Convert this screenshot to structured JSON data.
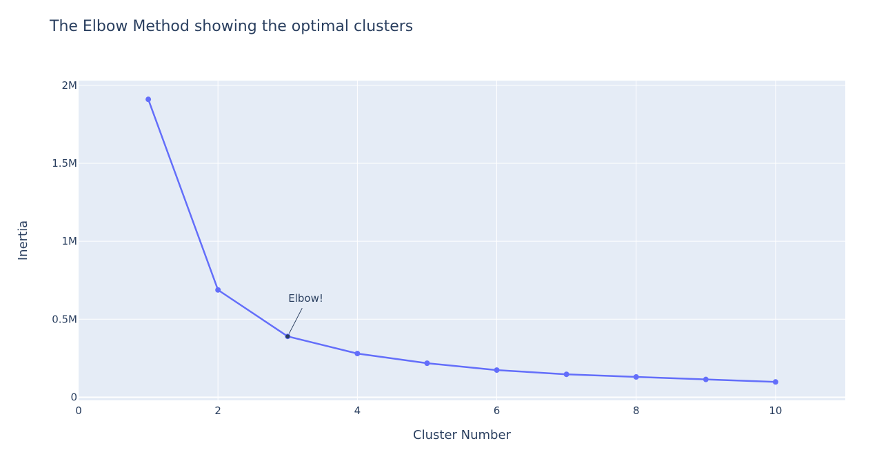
{
  "chart_data": {
    "type": "line",
    "title": "The Elbow Method showing the optimal clusters",
    "xlabel": "Cluster Number",
    "ylabel": "Inertia",
    "xlim": [
      0,
      11
    ],
    "ylim": [
      -20000,
      2030000
    ],
    "x_ticks": [
      0,
      2,
      4,
      6,
      8,
      10
    ],
    "x_tick_labels": [
      "0",
      "2",
      "4",
      "6",
      "8",
      "10"
    ],
    "y_ticks": [
      0,
      500000,
      1000000,
      1500000,
      2000000
    ],
    "y_tick_labels": [
      "0",
      "0.5M",
      "1M",
      "1.5M",
      "2M"
    ],
    "grid": true,
    "series": [
      {
        "x": [
          1,
          2,
          3,
          4,
          5,
          6,
          7,
          8,
          9,
          10
        ],
        "y": [
          1910000,
          688000,
          390000,
          280000,
          218000,
          174000,
          147000,
          130000,
          114000,
          98000
        ]
      }
    ],
    "annotations": [
      {
        "x": 3,
        "y": 390000,
        "text": "Elbow!"
      }
    ],
    "colors": {
      "line": "#636efa",
      "plot_bg": "#e5ecf6",
      "grid": "#ffffff",
      "text": "#2a3f5f",
      "annotation_marker": "#2a3f5f"
    }
  }
}
